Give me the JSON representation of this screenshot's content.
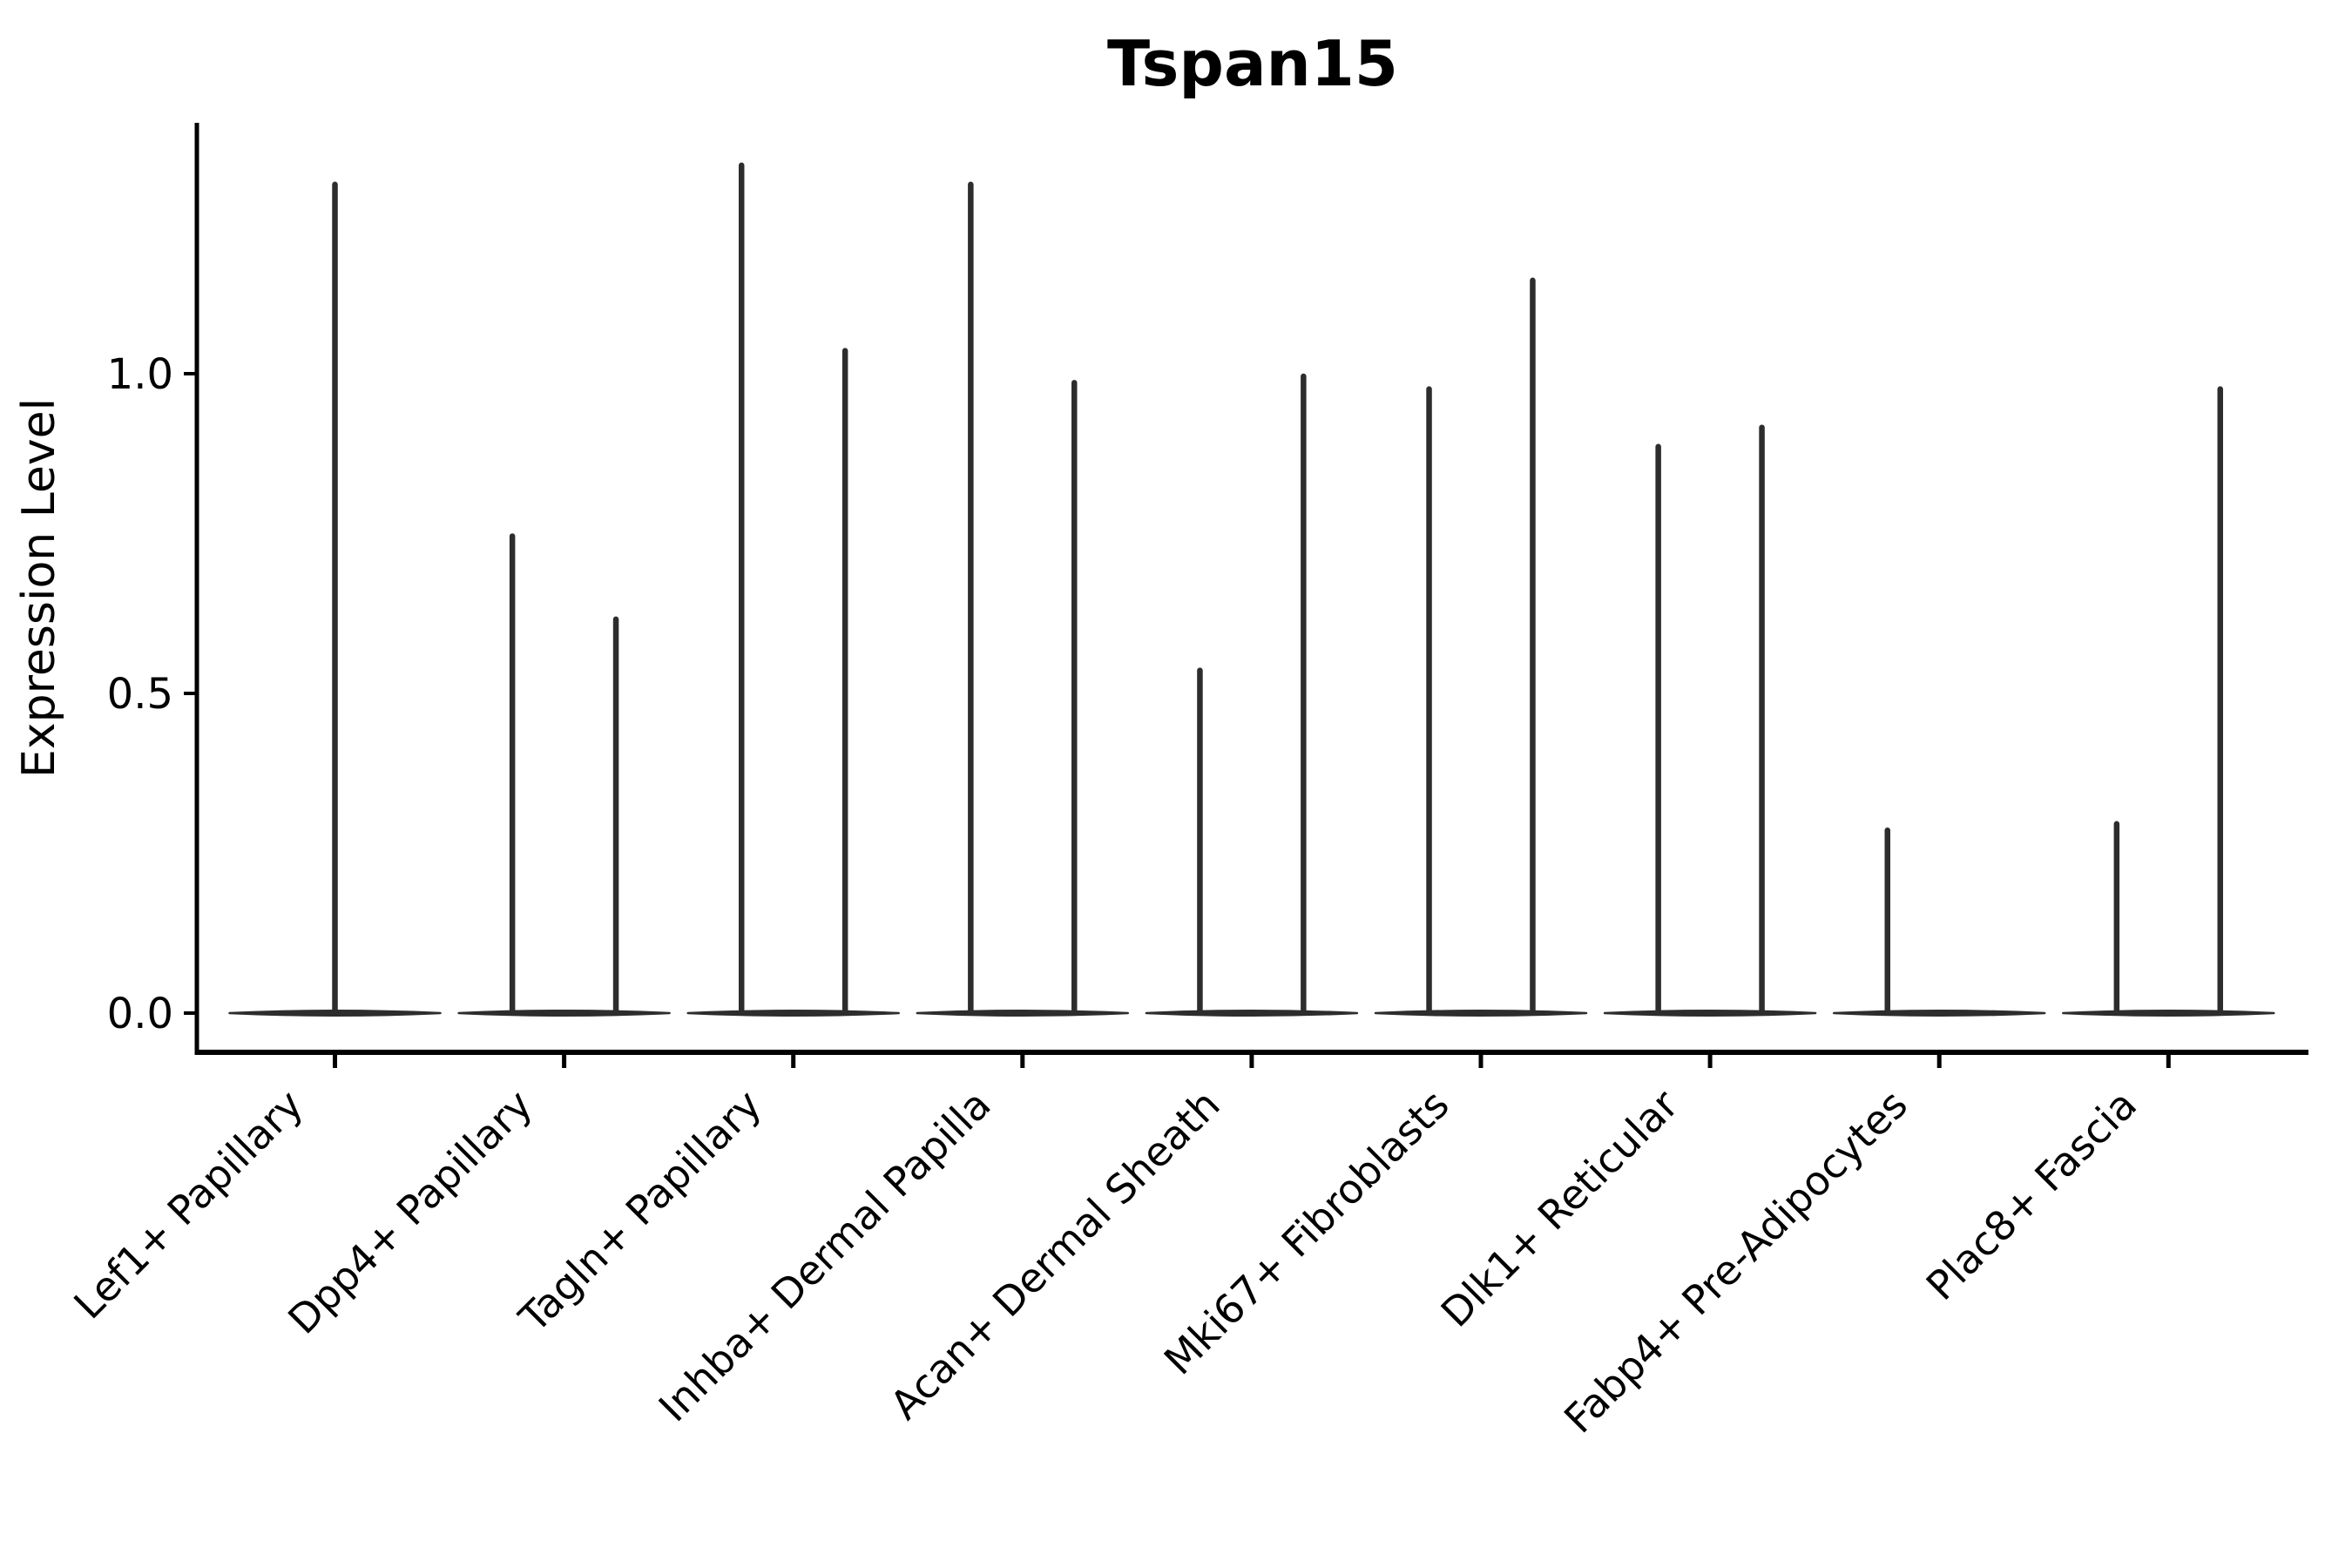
{
  "chart_data": {
    "type": "violin",
    "title": "Tspan15",
    "ylabel": "Expression Level",
    "xlabel": "",
    "grid": false,
    "legend": "none",
    "background_color": "#ffffff",
    "violin_color": "#2d2d2d",
    "axis_color": "#000000",
    "yticks": [
      "0.0",
      "0.5",
      "1.0"
    ],
    "ylim": [
      -0.06,
      1.39
    ],
    "categories": [
      "Lef1+ Papillary",
      "Dpp4+ Papillary",
      "Tagln+ Papillary",
      "Inhba+ Dermal Papilla",
      "Acan+ Dermal Sheath",
      "Mki67+ Fibroblasts",
      "Dlk1+ Reticular",
      "Fabp4+ Pre-Adipocytes",
      "Plac8+ Fascia"
    ],
    "violins": [
      {
        "category": "Lef1+ Papillary",
        "spikes": [
          {
            "pos": "center",
            "max": 1.3
          }
        ]
      },
      {
        "category": "Dpp4+ Papillary",
        "spikes": [
          {
            "pos": "left",
            "max": 0.75
          },
          {
            "pos": "right",
            "max": 0.62
          }
        ]
      },
      {
        "category": "Tagln+ Papillary",
        "spikes": [
          {
            "pos": "left",
            "max": 1.33
          },
          {
            "pos": "right",
            "max": 1.04
          }
        ]
      },
      {
        "category": "Inhba+ Dermal Papilla",
        "spikes": [
          {
            "pos": "left",
            "max": 1.3
          },
          {
            "pos": "right",
            "max": 0.99
          }
        ]
      },
      {
        "category": "Acan+ Dermal Sheath",
        "spikes": [
          {
            "pos": "left",
            "max": 0.54
          },
          {
            "pos": "right",
            "max": 1.0
          }
        ]
      },
      {
        "category": "Mki67+ Fibroblasts",
        "spikes": [
          {
            "pos": "left",
            "max": 0.98
          },
          {
            "pos": "right",
            "max": 1.15
          }
        ]
      },
      {
        "category": "Dlk1+ Reticular",
        "spikes": [
          {
            "pos": "left",
            "max": 0.89
          },
          {
            "pos": "right",
            "max": 0.92
          }
        ]
      },
      {
        "category": "Fabp4+ Pre-Adipocytes",
        "spikes": [
          {
            "pos": "left",
            "max": 0.29
          }
        ]
      },
      {
        "category": "Plac8+ Fascia",
        "spikes": [
          {
            "pos": "left",
            "max": 0.3
          },
          {
            "pos": "right",
            "max": 0.98
          }
        ]
      }
    ],
    "base_half_width_fraction": 0.46,
    "spike_offset_fraction": 0.226,
    "note": "All violins are flat pancakes at expression 0 with a thin spike up to the max expression value"
  }
}
